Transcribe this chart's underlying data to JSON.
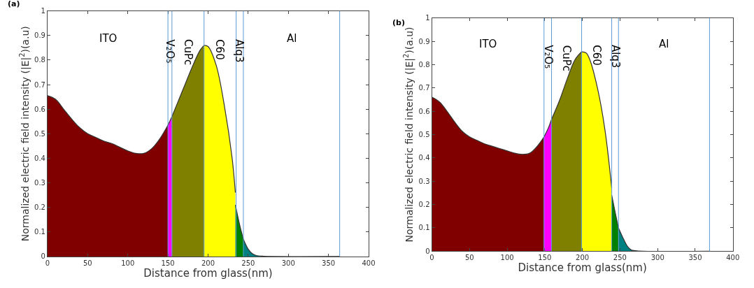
{
  "chart_data": [
    {
      "type": "area",
      "title": "(a)",
      "xlabel": "Distance from glass(nm)",
      "ylabel": "Normalized electric field intensity (|E|$^{2}$)(a.u)",
      "xlim": [
        0,
        400
      ],
      "ylim": [
        0,
        1
      ],
      "xticks": [
        0,
        50,
        100,
        150,
        200,
        250,
        300,
        350,
        400
      ],
      "yticks": [
        0,
        0.1,
        0.2,
        0.3,
        0.4,
        0.5,
        0.6,
        0.7,
        0.8,
        0.9,
        1
      ],
      "series": [
        {
          "color": "#800000",
          "x": [
            0,
            10,
            20,
            30,
            40,
            50,
            60,
            70,
            80,
            90,
            100,
            110,
            120,
            130,
            140,
            150
          ],
          "values": [
            0.655,
            0.64,
            0.6,
            0.56,
            0.525,
            0.5,
            0.485,
            0.47,
            0.46,
            0.445,
            0.43,
            0.42,
            0.42,
            0.44,
            0.48,
            0.535
          ]
        },
        {
          "color": "#ff00ff",
          "x": [
            150,
            152.5,
            155
          ],
          "values": [
            0.535,
            0.552,
            0.57
          ]
        },
        {
          "color": "#808000",
          "x": [
            155,
            160,
            170,
            180,
            190,
            195
          ],
          "values": [
            0.57,
            0.61,
            0.69,
            0.77,
            0.84,
            0.86
          ]
        },
        {
          "color": "#ffff00",
          "x": [
            195,
            200,
            210,
            220,
            230,
            234
          ],
          "values": [
            0.86,
            0.855,
            0.78,
            0.62,
            0.4,
            0.26
          ]
        },
        {
          "color": "#008000",
          "x": [
            234,
            240,
            244
          ],
          "values": [
            0.21,
            0.12,
            0.07
          ]
        },
        {
          "color": "#008080",
          "x": [
            244,
            250,
            255,
            260,
            270,
            280,
            364
          ],
          "values": [
            0.07,
            0.03,
            0.012,
            0.004,
            0.001,
            0,
            0
          ]
        }
      ],
      "ref_lines": [
        {
          "axis": "x",
          "value": 150,
          "color": "#5b9bd5"
        },
        {
          "axis": "x",
          "value": 155,
          "color": "#5b9bd5"
        },
        {
          "axis": "x",
          "value": 195,
          "color": "#5b9bd5"
        },
        {
          "axis": "x",
          "value": 235,
          "color": "#5b9bd5"
        },
        {
          "axis": "x",
          "value": 244,
          "color": "#5b9bd5"
        },
        {
          "axis": "x",
          "value": 364,
          "color": "#5b9bd5"
        }
      ],
      "annotations": [
        "ITO",
        "V₂O₅",
        "CuPc",
        "C60",
        "Alq3",
        "Al"
      ]
    },
    {
      "type": "area",
      "title": "(b)",
      "xlabel": "Distance from glass(nm)",
      "ylabel": "Normalized electric field intensity (|E|$^{2}$)(a.u)",
      "xlim": [
        0,
        400
      ],
      "ylim": [
        0,
        1
      ],
      "xticks": [
        0,
        50,
        100,
        150,
        200,
        250,
        300,
        350,
        400
      ],
      "yticks": [
        0,
        0.1,
        0.2,
        0.3,
        0.4,
        0.5,
        0.6,
        0.7,
        0.8,
        0.9,
        1
      ],
      "series": [
        {
          "color": "#800000",
          "x": [
            0,
            10,
            20,
            30,
            40,
            50,
            60,
            70,
            80,
            90,
            100,
            110,
            120,
            130,
            140,
            149
          ],
          "values": [
            0.66,
            0.64,
            0.6,
            0.555,
            0.515,
            0.49,
            0.475,
            0.46,
            0.45,
            0.44,
            0.43,
            0.42,
            0.415,
            0.42,
            0.45,
            0.49
          ]
        },
        {
          "color": "#ff00ff",
          "x": [
            149,
            155,
            159
          ],
          "values": [
            0.49,
            0.53,
            0.565
          ]
        },
        {
          "color": "#808000",
          "x": [
            159,
            170,
            180,
            190,
            199
          ],
          "values": [
            0.565,
            0.65,
            0.74,
            0.82,
            0.855
          ]
        },
        {
          "color": "#ffff00",
          "x": [
            199,
            205,
            210,
            220,
            230,
            239
          ],
          "values": [
            0.855,
            0.85,
            0.82,
            0.7,
            0.52,
            0.27
          ]
        },
        {
          "color": "#008000",
          "x": [
            239,
            244,
            248
          ],
          "values": [
            0.24,
            0.16,
            0.1
          ]
        },
        {
          "color": "#008080",
          "x": [
            248,
            255,
            260,
            265,
            270,
            280,
            369
          ],
          "values": [
            0.1,
            0.05,
            0.02,
            0.005,
            0.002,
            0,
            0
          ]
        }
      ],
      "ref_lines": [
        {
          "axis": "x",
          "value": 149,
          "color": "#5b9bd5"
        },
        {
          "axis": "x",
          "value": 159,
          "color": "#5b9bd5"
        },
        {
          "axis": "x",
          "value": 199,
          "color": "#5b9bd5"
        },
        {
          "axis": "x",
          "value": 239,
          "color": "#5b9bd5"
        },
        {
          "axis": "x",
          "value": 248,
          "color": "#5b9bd5"
        },
        {
          "axis": "x",
          "value": 369,
          "color": "#5b9bd5"
        }
      ],
      "annotations": [
        "ITO",
        "V₂O₅",
        "CuPc",
        "C60",
        "Alq3",
        "Al"
      ]
    }
  ]
}
